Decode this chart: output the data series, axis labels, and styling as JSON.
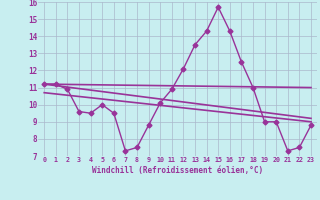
{
  "background_color": "#c8eef0",
  "grid_color": "#aab8cc",
  "line_color": "#993399",
  "xlabel": "Windchill (Refroidissement éolien,°C)",
  "xlim": [
    -0.5,
    23.5
  ],
  "ylim": [
    7,
    16
  ],
  "yticks": [
    7,
    8,
    9,
    10,
    11,
    12,
    13,
    14,
    15,
    16
  ],
  "xticks": [
    0,
    1,
    2,
    3,
    4,
    5,
    6,
    7,
    8,
    9,
    10,
    11,
    12,
    13,
    14,
    15,
    16,
    17,
    18,
    19,
    20,
    21,
    22,
    23
  ],
  "series": [
    {
      "x": [
        0,
        1,
        2,
        3,
        4,
        5,
        6,
        7,
        8,
        9,
        10,
        11,
        12,
        13,
        14,
        15,
        16,
        17,
        18,
        19,
        20,
        21,
        22,
        23
      ],
      "y": [
        11.2,
        11.2,
        10.9,
        9.6,
        9.5,
        10.0,
        9.5,
        7.3,
        7.5,
        8.8,
        10.1,
        10.9,
        12.1,
        13.5,
        14.3,
        15.7,
        14.3,
        12.5,
        11.0,
        9.0,
        9.0,
        7.3,
        7.5,
        8.8
      ],
      "marker": "D",
      "linewidth": 1.0,
      "markersize": 2.5
    },
    {
      "x": [
        0,
        23
      ],
      "y": [
        11.2,
        11.0
      ],
      "marker": null,
      "linewidth": 1.2
    },
    {
      "x": [
        0,
        23
      ],
      "y": [
        11.2,
        9.2
      ],
      "marker": null,
      "linewidth": 1.2
    },
    {
      "x": [
        0,
        23
      ],
      "y": [
        10.7,
        9.0
      ],
      "marker": null,
      "linewidth": 1.2
    }
  ]
}
